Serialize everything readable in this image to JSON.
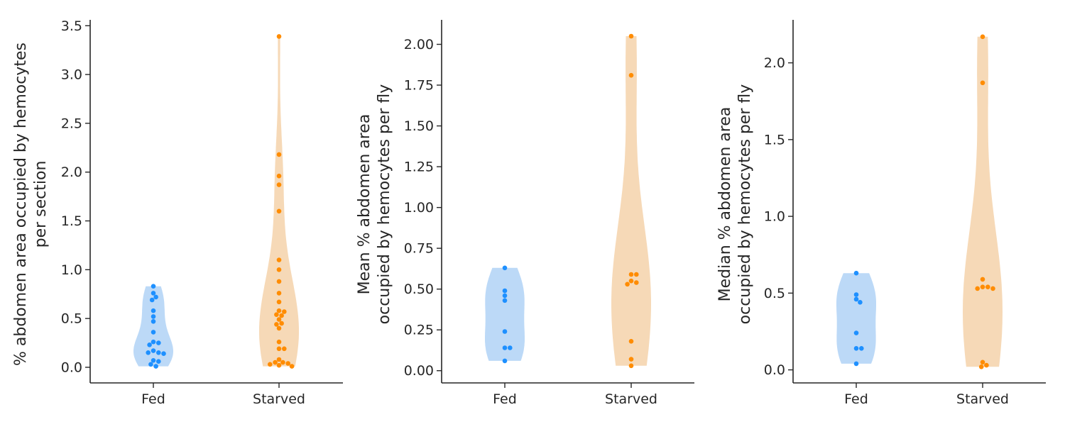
{
  "colors": {
    "fed_point": "#1e90ff",
    "fed_violin": "#bcd9f7",
    "starved_point": "#ff8c00",
    "starved_violin": "#f6d9b7",
    "axis": "#262626"
  },
  "chart_data": [
    {
      "type": "scatter",
      "subtype": "violin-swarm",
      "categories": [
        "Fed",
        "Starved"
      ],
      "ylabel_lines": [
        "% abdomen area occupied by hemocytes",
        "per section"
      ],
      "ylim": [
        -0.16,
        3.56
      ],
      "yticks": [
        0.0,
        0.5,
        1.0,
        1.5,
        2.0,
        2.5,
        3.0,
        3.5
      ],
      "ytick_labels": [
        "0.0",
        "0.5",
        "1.0",
        "1.5",
        "2.0",
        "2.5",
        "3.0",
        "3.5"
      ],
      "series": [
        {
          "category": "Fed",
          "values": [
            0.83,
            0.76,
            0.72,
            0.69,
            0.58,
            0.52,
            0.47,
            0.36,
            0.26,
            0.25,
            0.23,
            0.17,
            0.15,
            0.15,
            0.14,
            0.07,
            0.06,
            0.03,
            0.01
          ]
        },
        {
          "category": "Starved",
          "values": [
            3.39,
            2.18,
            1.96,
            1.87,
            1.6,
            1.1,
            1.0,
            0.88,
            0.76,
            0.67,
            0.58,
            0.57,
            0.54,
            0.53,
            0.49,
            0.45,
            0.44,
            0.4,
            0.26,
            0.19,
            0.19,
            0.08,
            0.05,
            0.05,
            0.04,
            0.03,
            0.02,
            0.01
          ]
        }
      ],
      "grid": false,
      "legend": "none"
    },
    {
      "type": "scatter",
      "subtype": "violin-swarm",
      "categories": [
        "Fed",
        "Starved"
      ],
      "ylabel_lines": [
        "Mean % abdomen area",
        "occupied by hemocytes per fly"
      ],
      "ylim": [
        -0.075,
        2.15
      ],
      "yticks": [
        0.0,
        0.25,
        0.5,
        0.75,
        1.0,
        1.25,
        1.5,
        1.75,
        2.0
      ],
      "ytick_labels": [
        "0.00",
        "0.25",
        "0.50",
        "0.75",
        "1.00",
        "1.25",
        "1.50",
        "1.75",
        "2.00"
      ],
      "series": [
        {
          "category": "Fed",
          "values": [
            0.63,
            0.49,
            0.46,
            0.43,
            0.24,
            0.14,
            0.14,
            0.06
          ]
        },
        {
          "category": "Starved",
          "values": [
            2.05,
            1.81,
            0.59,
            0.59,
            0.55,
            0.54,
            0.53,
            0.18,
            0.07,
            0.03
          ]
        }
      ],
      "grid": false,
      "legend": "none"
    },
    {
      "type": "scatter",
      "subtype": "violin-swarm",
      "categories": [
        "Fed",
        "Starved"
      ],
      "ylabel_lines": [
        "Median % abdomen area",
        "occupied by hemocytes per fly"
      ],
      "ylim": [
        -0.085,
        2.28
      ],
      "yticks": [
        0.0,
        0.5,
        1.0,
        1.5,
        2.0
      ],
      "ytick_labels": [
        "0.0",
        "0.5",
        "1.0",
        "1.5",
        "2.0"
      ],
      "series": [
        {
          "category": "Fed",
          "values": [
            0.63,
            0.49,
            0.46,
            0.44,
            0.24,
            0.14,
            0.14,
            0.04
          ]
        },
        {
          "category": "Starved",
          "values": [
            2.17,
            1.87,
            0.59,
            0.54,
            0.54,
            0.53,
            0.53,
            0.05,
            0.03,
            0.02
          ]
        }
      ],
      "grid": false,
      "legend": "none"
    }
  ]
}
